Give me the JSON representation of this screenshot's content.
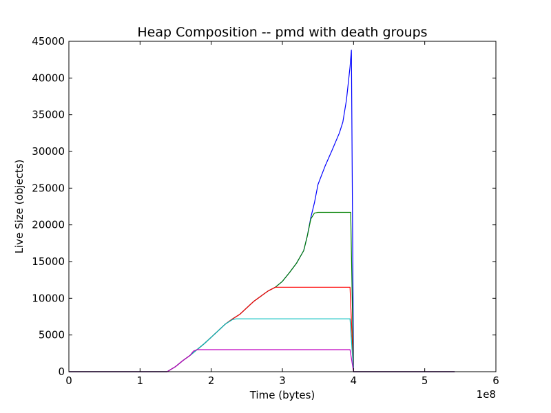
{
  "chart_data": {
    "type": "line",
    "title": "Heap Composition -- pmd with death groups",
    "xlabel": "Time (bytes)",
    "ylabel": "Live Size (objects)",
    "x_scale_label": "1e8",
    "xlim": [
      0,
      6
    ],
    "ylim": [
      0,
      45000
    ],
    "x_ticks": [
      0,
      1,
      2,
      3,
      4,
      5,
      6
    ],
    "x_tick_labels": [
      "0",
      "1",
      "2",
      "3",
      "4",
      "5",
      "6"
    ],
    "y_ticks": [
      0,
      5000,
      10000,
      15000,
      20000,
      25000,
      30000,
      35000,
      40000,
      45000
    ],
    "y_tick_labels": [
      "0",
      "5000",
      "10000",
      "15000",
      "20000",
      "25000",
      "30000",
      "35000",
      "40000",
      "45000"
    ],
    "grid": false,
    "legend": "none",
    "series": [
      {
        "color": "#0000ff",
        "points": [
          [
            0,
            0
          ],
          [
            1.38,
            0
          ],
          [
            1.5,
            700
          ],
          [
            1.6,
            1500
          ],
          [
            1.7,
            2200
          ],
          [
            1.8,
            3000
          ],
          [
            1.9,
            3800
          ],
          [
            2.0,
            4700
          ],
          [
            2.1,
            5600
          ],
          [
            2.2,
            6500
          ],
          [
            2.3,
            7200
          ],
          [
            2.4,
            7800
          ],
          [
            2.5,
            8700
          ],
          [
            2.6,
            9600
          ],
          [
            2.7,
            10300
          ],
          [
            2.8,
            11000
          ],
          [
            2.9,
            11500
          ],
          [
            3.0,
            12300
          ],
          [
            3.1,
            13500
          ],
          [
            3.2,
            14800
          ],
          [
            3.3,
            16500
          ],
          [
            3.35,
            18500
          ],
          [
            3.4,
            21000
          ],
          [
            3.45,
            23000
          ],
          [
            3.5,
            25500
          ],
          [
            3.6,
            28000
          ],
          [
            3.7,
            30200
          ],
          [
            3.8,
            32500
          ],
          [
            3.85,
            34000
          ],
          [
            3.9,
            37000
          ],
          [
            3.95,
            41500
          ],
          [
            3.97,
            43800
          ],
          [
            4.0,
            0
          ],
          [
            5.42,
            0
          ]
        ]
      },
      {
        "color": "#008000",
        "points": [
          [
            0,
            0
          ],
          [
            1.38,
            0
          ],
          [
            1.5,
            700
          ],
          [
            1.6,
            1500
          ],
          [
            1.7,
            2200
          ],
          [
            1.8,
            3000
          ],
          [
            1.9,
            3800
          ],
          [
            2.0,
            4700
          ],
          [
            2.1,
            5600
          ],
          [
            2.2,
            6500
          ],
          [
            2.3,
            7200
          ],
          [
            2.4,
            7800
          ],
          [
            2.5,
            8700
          ],
          [
            2.6,
            9600
          ],
          [
            2.7,
            10300
          ],
          [
            2.8,
            11000
          ],
          [
            2.9,
            11500
          ],
          [
            3.0,
            12300
          ],
          [
            3.1,
            13500
          ],
          [
            3.2,
            14800
          ],
          [
            3.3,
            16500
          ],
          [
            3.35,
            18500
          ],
          [
            3.4,
            20800
          ],
          [
            3.45,
            21600
          ],
          [
            3.5,
            21700
          ],
          [
            3.96,
            21700
          ],
          [
            4.0,
            0
          ],
          [
            5.42,
            0
          ]
        ]
      },
      {
        "color": "#ff0000",
        "points": [
          [
            0,
            0
          ],
          [
            1.38,
            0
          ],
          [
            1.5,
            700
          ],
          [
            1.6,
            1500
          ],
          [
            1.7,
            2200
          ],
          [
            1.8,
            3000
          ],
          [
            1.9,
            3800
          ],
          [
            2.0,
            4700
          ],
          [
            2.1,
            5600
          ],
          [
            2.2,
            6500
          ],
          [
            2.3,
            7200
          ],
          [
            2.4,
            7800
          ],
          [
            2.5,
            8700
          ],
          [
            2.6,
            9600
          ],
          [
            2.7,
            10300
          ],
          [
            2.8,
            11000
          ],
          [
            2.9,
            11500
          ],
          [
            3.95,
            11500
          ],
          [
            4.0,
            0
          ],
          [
            5.42,
            0
          ]
        ]
      },
      {
        "color": "#00bfbf",
        "points": [
          [
            0,
            0
          ],
          [
            1.38,
            0
          ],
          [
            1.5,
            700
          ],
          [
            1.6,
            1500
          ],
          [
            1.7,
            2200
          ],
          [
            1.8,
            3000
          ],
          [
            1.9,
            3800
          ],
          [
            2.0,
            4700
          ],
          [
            2.1,
            5600
          ],
          [
            2.2,
            6500
          ],
          [
            2.3,
            7100
          ],
          [
            2.35,
            7200
          ],
          [
            3.95,
            7200
          ],
          [
            4.0,
            0
          ],
          [
            5.42,
            0
          ]
        ]
      },
      {
        "color": "#bf00bf",
        "points": [
          [
            0,
            0
          ],
          [
            1.38,
            0
          ],
          [
            1.5,
            700
          ],
          [
            1.6,
            1500
          ],
          [
            1.7,
            2200
          ],
          [
            1.75,
            2800
          ],
          [
            1.8,
            3000
          ],
          [
            3.95,
            3000
          ],
          [
            4.0,
            0
          ],
          [
            5.42,
            0
          ]
        ]
      }
    ]
  }
}
